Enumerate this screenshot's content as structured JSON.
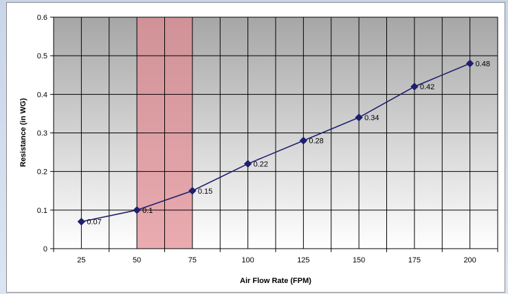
{
  "chart_data": {
    "type": "line",
    "title": "",
    "xlabel": "Air Flow Rate (FPM)",
    "ylabel": "Resistance (in WG)",
    "categories": [
      "25",
      "50",
      "75",
      "100",
      "125",
      "150",
      "175",
      "200"
    ],
    "series": [
      {
        "values": [
          0.07,
          0.1,
          0.15,
          0.22,
          0.28,
          0.34,
          0.42,
          0.48
        ],
        "data_labels": [
          "0.07",
          "0.1",
          "0.15",
          "0.22",
          "0.28",
          "0.34",
          "0.42",
          "0.48"
        ],
        "color": "#1f1f6e",
        "marker": "diamond"
      }
    ],
    "ylim": [
      0,
      0.6
    ],
    "yticks": [
      "0",
      "0.1",
      "0.2",
      "0.3",
      "0.4",
      "0.5",
      "0.6"
    ],
    "grid": true,
    "highlight_band": {
      "from": 50,
      "to": 75,
      "color": "#e08a92"
    },
    "legend": "none"
  },
  "colors": {
    "plot_top": "#a6a6a6",
    "plot_bottom": "#ffffff",
    "gridline": "#000000",
    "line": "#1f1f6e"
  }
}
